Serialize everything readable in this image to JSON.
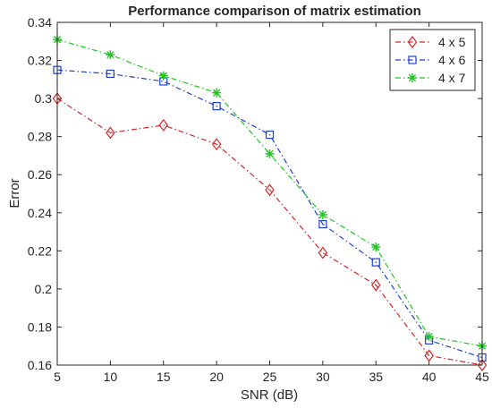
{
  "chart_data": {
    "type": "line",
    "title": "Performance comparison of matrix estimation",
    "xlabel": "SNR (dB)",
    "ylabel": "Error",
    "x": [
      5,
      10,
      15,
      20,
      25,
      30,
      35,
      40,
      45
    ],
    "xlim": [
      5,
      45
    ],
    "ylim": [
      0.16,
      0.34
    ],
    "xticks": [
      "5",
      "10",
      "15",
      "20",
      "25",
      "30",
      "35",
      "40",
      "45"
    ],
    "yticks": [
      "0.16",
      "0.18",
      "0.2",
      "0.22",
      "0.24",
      "0.26",
      "0.28",
      "0.3",
      "0.32",
      "0.34"
    ],
    "grid": false,
    "legend_position": "top-right",
    "series": [
      {
        "name": "4 x 5",
        "color": "#d62728",
        "marker": "diamond",
        "line_style": "dash-dot",
        "values": [
          0.3,
          0.282,
          0.286,
          0.276,
          0.252,
          0.219,
          0.202,
          0.165,
          0.16
        ]
      },
      {
        "name": "4 x 6",
        "color": "#1f3fd6",
        "marker": "square",
        "line_style": "dash-dot",
        "values": [
          0.315,
          0.313,
          0.309,
          0.296,
          0.281,
          0.234,
          0.214,
          0.173,
          0.164
        ]
      },
      {
        "name": "4 x 7",
        "color": "#22c422",
        "marker": "asterisk",
        "line_style": "dash-dot",
        "values": [
          0.331,
          0.323,
          0.312,
          0.303,
          0.271,
          0.239,
          0.222,
          0.175,
          0.17
        ]
      }
    ]
  }
}
